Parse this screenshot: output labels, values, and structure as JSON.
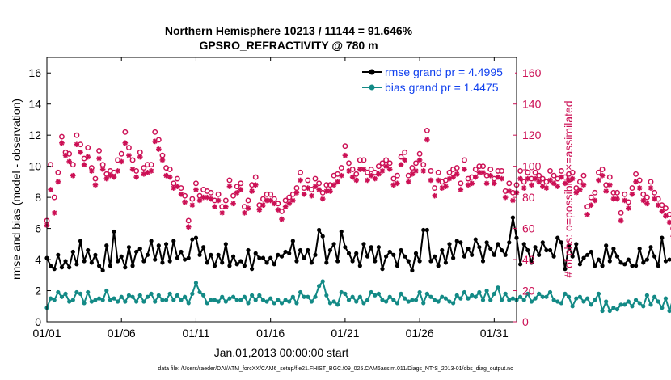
{
  "chart_data": {
    "type": "line",
    "title": "Northern Hemisphere 10213 / 11144 = 91.646%",
    "subtitle": "GPSRO_REFRACTIVITY @ 780 m",
    "xlabel": "Jan.01,2013 00:00:00 start",
    "ylabel": "rmse and bias (model - observation)",
    "y2label": "# of obs: o=possible; ×=assimilated",
    "footnote": "data file: /Users/raeder/DAI/ATM_forcXX/CAM6_setup/f.e21.FHIST_BGC.f09_025.CAM6assim.011/Diags_NTrS_2013-01/obs_diag_output.nc",
    "x_range_days": [
      0,
      31.5
    ],
    "ylim": [
      0,
      17
    ],
    "y2lim": [
      0,
      170
    ],
    "xticks": [
      "01/01",
      "01/06",
      "01/11",
      "01/16",
      "01/21",
      "01/26",
      "01/31"
    ],
    "xtick_days": [
      0,
      5,
      10,
      15,
      20,
      25,
      30
    ],
    "yticks": [
      "0",
      "2",
      "4",
      "6",
      "8",
      "10",
      "12",
      "14",
      "16"
    ],
    "ytick_values": [
      0,
      2,
      4,
      6,
      8,
      10,
      12,
      14,
      16
    ],
    "y2ticks": [
      "0",
      "20",
      "40",
      "60",
      "80",
      "100",
      "120",
      "140",
      "160"
    ],
    "y2tick_values": [
      0,
      20,
      40,
      60,
      80,
      100,
      120,
      140,
      160
    ],
    "time_step_days": 0.25,
    "legend": [
      {
        "label": "rmse grand pr = 4.4995",
        "color": "#000000"
      },
      {
        "label": "bias grand pr = 1.4475",
        "color": "#008080"
      }
    ],
    "colors": {
      "rmse": "#000000",
      "bias": "#138a86",
      "obs": "#cc1055",
      "legend_text": "#1040ee",
      "right_axis": "#cc1055"
    },
    "series": [
      {
        "name": "rmse",
        "values": [
          4.1,
          3.6,
          3.4,
          4.3,
          3.5,
          3.9,
          3.5,
          4.5,
          3.7,
          5.2,
          3.9,
          4.6,
          3.8,
          4.3,
          3.6,
          3.3,
          4.9,
          3.6,
          5.8,
          3.9,
          4.2,
          3.5,
          4.8,
          3.6,
          4.5,
          4.7,
          3.9,
          4.3,
          5.2,
          4.0,
          4.9,
          3.8,
          5.0,
          3.9,
          5.2,
          4.1,
          4.5,
          4.0,
          4.1,
          5.3,
          5.4,
          4.3,
          4.8,
          3.8,
          4.3,
          3.6,
          4.3,
          3.8,
          5.0,
          3.6,
          4.2,
          3.7,
          3.9,
          3.6,
          4.6,
          3.4,
          4.4,
          4.1,
          4.1,
          3.8,
          4.1,
          3.7,
          4.3,
          4.2,
          4.5,
          4.4,
          5.2,
          3.9,
          4.6,
          4.1,
          4.6,
          3.8,
          4.3,
          5.9,
          5.5,
          3.8,
          4.6,
          5.0,
          3.9,
          5.8,
          4.8,
          4.4,
          3.9,
          4.4,
          3.6,
          5.0,
          4.2,
          4.8,
          3.9,
          4.8,
          3.4,
          4.2,
          4.5,
          4.3,
          3.6,
          4.6,
          4.2,
          3.9,
          3.3,
          4.4,
          3.9,
          5.9,
          5.9,
          3.9,
          4.2,
          3.6,
          4.6,
          3.8,
          5.0,
          4.1,
          5.2,
          5.1,
          4.2,
          4.7,
          4.3,
          5.3,
          4.8,
          3.9,
          5.1,
          4.7,
          4.3,
          5.0,
          4.6,
          4.3,
          5.1,
          6.7,
          5.4,
          3.7,
          5.0,
          4.6,
          3.8,
          4.8,
          4.3,
          5.1,
          4.6,
          4.6,
          4.2,
          5.4,
          5.1,
          3.4,
          4.9,
          4.2,
          5.0,
          3.7,
          4.1,
          4.3,
          4.5,
          3.6,
          4.0,
          3.6,
          4.9,
          3.9,
          4.7,
          4.2,
          3.8,
          3.7,
          4.0,
          3.6,
          3.6,
          4.7,
          3.8,
          4.0,
          4.8,
          4.2,
          3.6,
          5.4,
          3.9,
          4.0,
          3.9,
          4.0,
          4.1,
          4.3,
          3.8,
          4.3,
          3.8,
          3.7,
          4.0,
          4.5,
          3.9,
          4.3,
          3.6,
          4.8,
          3.7,
          5.3,
          4.2,
          5.7,
          3.6,
          5.7,
          4.4,
          3.7,
          4.6,
          6.5,
          5.3,
          3.0,
          4.3,
          5.4,
          4.8,
          5.6,
          4.1,
          4.0,
          5.0,
          4.7,
          4.1,
          4.6,
          5.4,
          4.3,
          3.9,
          4.2,
          5.1,
          4.8,
          4.0,
          4.5,
          4.6,
          5.2,
          5.9,
          3.8,
          4.6,
          4.1,
          3.5,
          5.2,
          4.3,
          4.1
        ]
      },
      {
        "name": "bias",
        "values": [
          0.9,
          1.5,
          1.4,
          1.9,
          1.6,
          1.8,
          1.3,
          1.4,
          1.9,
          1.8,
          1.2,
          1.9,
          1.3,
          1.4,
          1.5,
          1.4,
          2.0,
          1.4,
          1.5,
          1.3,
          1.6,
          1.3,
          1.7,
          1.6,
          1.3,
          1.7,
          1.3,
          1.6,
          1.8,
          1.3,
          1.7,
          1.4,
          1.4,
          1.8,
          1.4,
          1.7,
          1.4,
          1.6,
          1.2,
          1.8,
          2.5,
          1.9,
          1.7,
          1.2,
          1.4,
          1.4,
          1.3,
          1.6,
          1.3,
          1.5,
          1.6,
          1.4,
          1.4,
          1.6,
          1.2,
          1.7,
          1.4,
          1.7,
          1.4,
          1.3,
          1.5,
          1.2,
          1.4,
          1.2,
          1.4,
          1.3,
          1.6,
          1.2,
          1.9,
          1.6,
          1.6,
          1.3,
          1.6,
          2.3,
          2.6,
          1.7,
          1.2,
          1.3,
          1.1,
          1.9,
          1.8,
          1.4,
          1.6,
          1.3,
          1.6,
          1.2,
          1.4,
          1.9,
          1.7,
          1.8,
          1.4,
          1.3,
          1.6,
          1.4,
          1.2,
          1.8,
          1.5,
          1.3,
          1.4,
          1.4,
          1.9,
          1.2,
          1.8,
          1.6,
          1.4,
          1.3,
          1.6,
          1.5,
          1.3,
          1.2,
          1.7,
          1.5,
          1.9,
          1.5,
          1.7,
          1.6,
          1.9,
          1.4,
          2.0,
          1.4,
          1.8,
          2.2,
          1.4,
          1.8,
          1.4,
          1.5,
          1.4,
          1.6,
          1.4,
          1.8,
          1.3,
          1.5,
          1.8,
          1.6,
          1.6,
          1.9,
          1.4,
          1.3,
          1.2,
          1.8,
          1.6,
          1.0,
          1.5,
          1.6,
          1.3,
          1.5,
          1.1,
          1.4,
          1.8,
          0.7,
          1.3,
          0.7,
          0.9,
          0.8,
          1.1,
          1.1,
          1.3,
          1.0,
          1.4,
          1.2,
          1.0,
          1.7,
          1.1,
          1.6,
          1.3,
          0.9,
          1.5,
          0.7,
          1.5,
          1.2,
          1.2,
          1.0,
          1.2,
          1.7,
          1.3,
          1.3,
          1.2,
          1.5,
          1.1,
          1.8,
          1.2,
          1.0,
          1.4,
          1.3,
          1.2,
          1.7,
          1.1,
          1.8,
          1.2,
          1.4,
          1.7,
          0.8,
          1.6,
          2.0,
          1.1,
          1.2,
          1.3,
          2.0,
          1.7,
          1.7,
          1.5,
          1.4,
          1.3,
          1.5,
          1.8,
          1.4,
          1.9,
          1.3,
          1.5,
          1.4,
          1.1,
          1.6,
          1.4,
          1.2,
          1.3,
          1.5,
          2.1,
          1.9,
          2.0,
          1.3,
          1.7,
          1.4,
          1.1,
          1.4,
          1.1
        ]
      },
      {
        "name": "obs possible",
        "axis": "right",
        "values": [
          65,
          101,
          80,
          96,
          119,
          109,
          108,
          101,
          120,
          114,
          105,
          112,
          99,
          92,
          110,
          101,
          95,
          97,
          96,
          104,
          108,
          122,
          112,
          104,
          97,
          109,
          99,
          101,
          101,
          122,
          117,
          107,
          99,
          98,
          89,
          92,
          86,
          81,
          65,
          79,
          89,
          81,
          85,
          84,
          83,
          78,
          82,
          74,
          78,
          91,
          81,
          87,
          89,
          74,
          78,
          88,
          93,
          75,
          79,
          82,
          82,
          79,
          76,
          71,
          78,
          80,
          82,
          86,
          96,
          86,
          91,
          85,
          92,
          89,
          83,
          88,
          88,
          94,
          95,
          99,
          113,
          102,
          98,
          95,
          104,
          104,
          96,
          98,
          96,
          100,
          102,
          104,
          102,
          92,
          94,
          106,
          109,
          94,
          99,
          102,
          108,
          101,
          123,
          97,
          86,
          96,
          90,
          91,
          96,
          98,
          99,
          89,
          104,
          92,
          93,
          98,
          100,
          100,
          94,
          98,
          92,
          97,
          97,
          84,
          89,
          83,
          88,
          97,
          90,
          96,
          92,
          96,
          94,
          92,
          90,
          97,
          94,
          92,
          97,
          93,
          95,
          96,
          86,
          90,
          94,
          74,
          80,
          83,
          96,
          98,
          88,
          93,
          83,
          83,
          70,
          82,
          77,
          86,
          95,
          91,
          82,
          80,
          90,
          83,
          79,
          75,
          73,
          69,
          60,
          58,
          53,
          66,
          84,
          82,
          80,
          94,
          87,
          72,
          83,
          61,
          78,
          74,
          79,
          68,
          64,
          75,
          70,
          76,
          69,
          68,
          60,
          70,
          95,
          88,
          93,
          86,
          64,
          70,
          66,
          77,
          74,
          71,
          80,
          85,
          82,
          78,
          81,
          85,
          93,
          88,
          91,
          94,
          87,
          99,
          94,
          91,
          101,
          0
        ]
      },
      {
        "name": "obs assimilated",
        "axis": "right",
        "values": [
          62,
          85,
          70,
          90,
          115,
          107,
          103,
          94,
          114,
          109,
          101,
          106,
          97,
          88,
          105,
          98,
          92,
          94,
          93,
          97,
          103,
          115,
          107,
          98,
          93,
          106,
          95,
          96,
          97,
          116,
          111,
          104,
          94,
          93,
          86,
          87,
          82,
          77,
          61,
          75,
          85,
          78,
          80,
          80,
          79,
          74,
          78,
          70,
          74,
          87,
          76,
          83,
          85,
          70,
          73,
          84,
          88,
          72,
          75,
          78,
          78,
          76,
          72,
          66,
          74,
          76,
          78,
          83,
          91,
          82,
          86,
          81,
          87,
          85,
          79,
          84,
          84,
          88,
          90,
          94,
          107,
          97,
          93,
          91,
          98,
          98,
          91,
          94,
          92,
          95,
          97,
          100,
          98,
          88,
          89,
          101,
          104,
          90,
          95,
          97,
          104,
          97,
          117,
          91,
          81,
          91,
          86,
          87,
          92,
          93,
          95,
          85,
          98,
          88,
          89,
          93,
          96,
          96,
          89,
          94,
          89,
          93,
          92,
          80,
          84,
          78,
          83,
          92,
          86,
          92,
          88,
          92,
          90,
          87,
          86,
          91,
          89,
          87,
          93,
          89,
          91,
          92,
          83,
          85,
          88,
          69,
          75,
          78,
          91,
          94,
          84,
          88,
          79,
          79,
          65,
          78,
          73,
          82,
          90,
          86,
          78,
          76,
          86,
          79,
          75,
          71,
          68,
          64,
          55,
          53,
          50,
          62,
          80,
          78,
          76,
          89,
          83,
          68,
          79,
          56,
          73,
          70,
          75,
          64,
          60,
          71,
          66,
          72,
          65,
          64,
          56,
          66,
          90,
          84,
          89,
          81,
          60,
          66,
          62,
          73,
          70,
          67,
          76,
          81,
          78,
          74,
          77,
          81,
          88,
          84,
          86,
          90,
          83,
          94,
          90,
          87,
          96,
          0
        ]
      }
    ]
  }
}
